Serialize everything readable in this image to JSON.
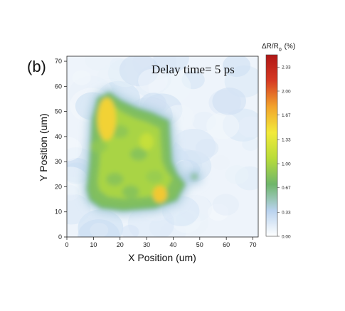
{
  "figure": {
    "panel_label": "(b)",
    "annotation": "Delay time= 5 ps"
  },
  "chart_data": {
    "type": "heatmap",
    "title": "",
    "xlabel": "X Position (um)",
    "ylabel": "Y Position (um)",
    "xlim": [
      0,
      72
    ],
    "ylim": [
      0,
      72
    ],
    "xticks": [
      0,
      10,
      20,
      30,
      40,
      50,
      60,
      70
    ],
    "yticks": [
      0,
      10,
      20,
      30,
      40,
      50,
      60,
      70
    ],
    "colorbar": {
      "title": "ΔR/R0 (%)",
      "range": [
        0,
        2.5
      ],
      "ticks": [
        "0.00",
        "0.33",
        "0.67",
        "1.00",
        "1.33",
        "1.67",
        "2.00",
        "2.33"
      ],
      "colors": [
        "#ffffff",
        "#b8d2ee",
        "#6fb66b",
        "#b8dc3a",
        "#f2ea3a",
        "#f2a32c",
        "#d63a23",
        "#b01616"
      ]
    },
    "region": {
      "description_values": "approximate signal in %",
      "background": 0.1,
      "left_edge_strip": 0.8,
      "central_plateau": 1.0,
      "bright_spots": [
        {
          "x": 15,
          "y": 47,
          "value": 1.55
        },
        {
          "x": 35,
          "y": 17,
          "value": 1.6
        },
        {
          "x": 30,
          "y": 38,
          "value": 1.15
        }
      ],
      "outline": [
        [
          8,
          19
        ],
        [
          9,
          29
        ],
        [
          10,
          47
        ],
        [
          12,
          55
        ],
        [
          16,
          57
        ],
        [
          20,
          54
        ],
        [
          26,
          51
        ],
        [
          32,
          49
        ],
        [
          38,
          46
        ],
        [
          39,
          30
        ],
        [
          41,
          25
        ],
        [
          44,
          21
        ],
        [
          41,
          15
        ],
        [
          33,
          12
        ],
        [
          21,
          11
        ],
        [
          13,
          12
        ],
        [
          9,
          15
        ]
      ],
      "blobs": [
        [
          48,
          24,
          0.55
        ]
      ]
    }
  }
}
